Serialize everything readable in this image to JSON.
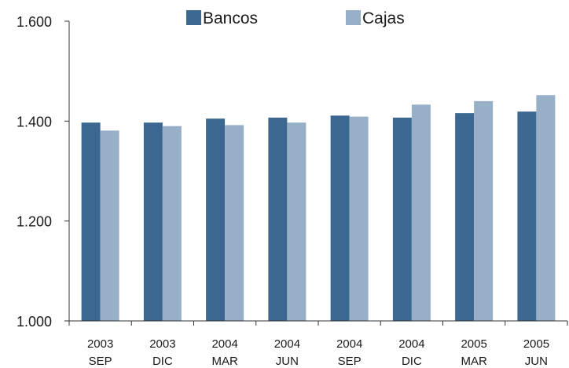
{
  "chart_data": {
    "type": "bar",
    "title": "",
    "xlabel": "",
    "ylabel": "",
    "categories": [
      [
        "2003",
        "SEP"
      ],
      [
        "2003",
        "DIC"
      ],
      [
        "2004",
        "MAR"
      ],
      [
        "2004",
        "JUN"
      ],
      [
        "2004",
        "SEP"
      ],
      [
        "2004",
        "DIC"
      ],
      [
        "2005",
        "MAR"
      ],
      [
        "2005",
        "JUN"
      ]
    ],
    "series": [
      {
        "name": "Bancos",
        "color": "#3b6791",
        "values": [
          1397,
          1397,
          1405,
          1407,
          1411,
          1407,
          1416,
          1419
        ]
      },
      {
        "name": "Cajas",
        "color": "#97b0c7",
        "values": [
          1381,
          1390,
          1392,
          1397,
          1409,
          1433,
          1440,
          1452
        ]
      }
    ],
    "ylim": [
      1000,
      1600
    ],
    "yticks": [
      {
        "value": 1000,
        "label": "1.000"
      },
      {
        "value": 1200,
        "label": "1.200"
      },
      {
        "value": 1400,
        "label": "1.400"
      },
      {
        "value": 1600,
        "label": "1.600"
      }
    ],
    "grid": false,
    "legend_position": "top-center"
  }
}
